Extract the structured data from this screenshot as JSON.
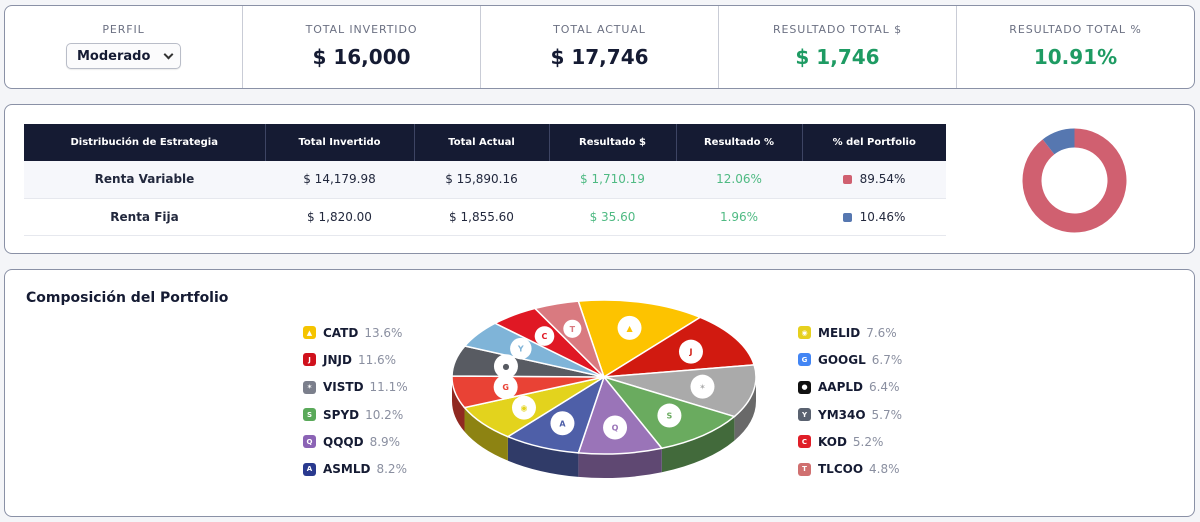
{
  "summary": {
    "profile_label": "PERFIL",
    "profile_value": "Moderado",
    "invested_label": "TOTAL INVERTIDO",
    "invested_value": "$ 16,000",
    "current_label": "TOTAL ACTUAL",
    "current_value": "$ 17,746",
    "result_label": "RESULTADO TOTAL $",
    "result_value": "$ 1,746",
    "result_pct_label": "RESULTADO TOTAL %",
    "result_pct_value": "10.91%"
  },
  "strategy_table": {
    "headers": [
      "Distribución de Estrategia",
      "Total Invertido",
      "Total Actual",
      "Resultado $",
      "Resultado %",
      "% del Portfolio"
    ],
    "rows": [
      {
        "name": "Renta Variable",
        "invested": "$ 14,179.98",
        "current": "$ 15,890.16",
        "result": "$ 1,710.19",
        "result_pct": "12.06%",
        "portfolio_pct": "89.54%",
        "color": "#d06070"
      },
      {
        "name": "Renta Fija",
        "invested": "$ 1,820.00",
        "current": "$ 1,855.60",
        "result": "$ 35.60",
        "result_pct": "1.96%",
        "portfolio_pct": "10.46%",
        "color": "#5677b0"
      }
    ]
  },
  "composition": {
    "title": "Composición del Portfolio",
    "legend_left": [
      {
        "ticker": "CATD",
        "pct": "13.6%",
        "icon": "caterpillar-icon",
        "color": "#f5c400"
      },
      {
        "ticker": "JNJD",
        "pct": "11.6%",
        "icon": "jnj-icon",
        "color": "#d0111c"
      },
      {
        "ticker": "VISTD",
        "pct": "11.1%",
        "icon": "vista-icon",
        "color": "#7b7f8c"
      },
      {
        "ticker": "SPYD",
        "pct": "10.2%",
        "icon": "spdr-icon",
        "color": "#5aa95a"
      },
      {
        "ticker": "QQQD",
        "pct": "8.9%",
        "icon": "invesco-icon",
        "color": "#8b63b5"
      },
      {
        "ticker": "ASMLD",
        "pct": "8.2%",
        "icon": "asml-icon",
        "color": "#2a3a8f"
      }
    ],
    "legend_right": [
      {
        "ticker": "MELID",
        "pct": "7.6%",
        "icon": "mercadolibre-icon",
        "color": "#e6d01e"
      },
      {
        "ticker": "GOOGL",
        "pct": "6.7%",
        "icon": "google-icon",
        "color": "#4285f4"
      },
      {
        "ticker": "AAPLD",
        "pct": "6.4%",
        "icon": "apple-icon",
        "color": "#111111"
      },
      {
        "ticker": "YM34O",
        "pct": "5.7%",
        "icon": "yum-icon",
        "color": "#5a6270"
      },
      {
        "ticker": "KOD",
        "pct": "5.2%",
        "icon": "cocacola-icon",
        "color": "#e01e28"
      },
      {
        "ticker": "TLCOO",
        "pct": "4.8%",
        "icon": "telecom-icon",
        "color": "#d07070"
      }
    ],
    "pie_logo_labels": [
      "SPDR",
      "ASML"
    ]
  },
  "colors": {
    "accent_positive": "#1e9b63",
    "header_dark": "#151b33",
    "donut_variable": "#d06070",
    "donut_fixed": "#5677b0"
  }
}
